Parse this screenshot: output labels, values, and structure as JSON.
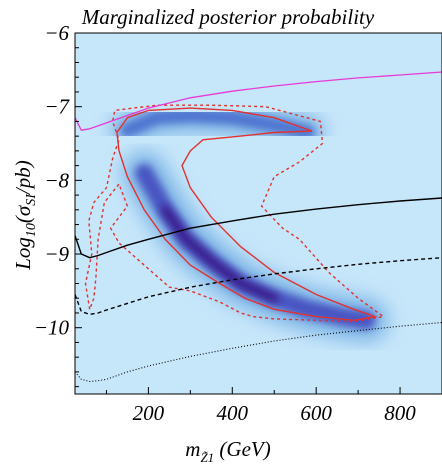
{
  "chart_data": {
    "type": "heatmap",
    "title": "Marginalized posterior probability",
    "xlabel": "m_{Z̃1} (GeV)",
    "ylabel": "Log10(σSI/pb)",
    "xlim": [
      25,
      900
    ],
    "ylim": [
      -10.9,
      -6
    ],
    "x_ticks": [
      {
        "value": 200,
        "label": "200"
      },
      {
        "value": 400,
        "label": "400"
      },
      {
        "value": 600,
        "label": "600"
      },
      {
        "value": 800,
        "label": "800"
      }
    ],
    "y_ticks": [
      {
        "value": -6,
        "label": "−6"
      },
      {
        "value": -7,
        "label": "−7"
      },
      {
        "value": -8,
        "label": "−8"
      },
      {
        "value": -9,
        "label": "−9"
      },
      {
        "value": -10,
        "label": "−10"
      }
    ],
    "colors": {
      "background": "#c6e6fa",
      "density_high": "#3a1f8a",
      "solid_contour": "#e0322f",
      "dashed_contour": "#e0322f",
      "magenta_line": "#e83ad8",
      "black_lines": "#000000"
    },
    "density_ridge": [
      [
        150,
        -7.32
      ],
      [
        220,
        -7.15
      ],
      [
        300,
        -7.12
      ],
      [
        400,
        -7.15
      ],
      [
        500,
        -7.25
      ],
      [
        580,
        -7.35
      ]
    ],
    "density_band": [
      [
        190,
        -7.9
      ],
      [
        240,
        -8.4
      ],
      [
        290,
        -8.8
      ],
      [
        350,
        -9.1
      ],
      [
        420,
        -9.4
      ],
      [
        500,
        -9.6
      ],
      [
        580,
        -9.75
      ],
      [
        660,
        -9.85
      ],
      [
        720,
        -9.9
      ]
    ],
    "solid_contour": [
      [
        125,
        -7.35
      ],
      [
        150,
        -7.15
      ],
      [
        200,
        -7.05
      ],
      [
        300,
        -7.02
      ],
      [
        400,
        -7.05
      ],
      [
        500,
        -7.15
      ],
      [
        590,
        -7.33
      ],
      [
        500,
        -7.35
      ],
      [
        420,
        -7.4
      ],
      [
        330,
        -7.45
      ],
      [
        300,
        -7.6
      ],
      [
        280,
        -7.8
      ],
      [
        300,
        -8.1
      ],
      [
        350,
        -8.5
      ],
      [
        420,
        -8.9
      ],
      [
        500,
        -9.25
      ],
      [
        600,
        -9.55
      ],
      [
        690,
        -9.75
      ],
      [
        740,
        -9.85
      ],
      [
        690,
        -9.9
      ],
      [
        600,
        -9.85
      ],
      [
        500,
        -9.75
      ],
      [
        430,
        -9.6
      ],
      [
        370,
        -9.4
      ],
      [
        300,
        -9.15
      ],
      [
        240,
        -8.8
      ],
      [
        190,
        -8.4
      ],
      [
        150,
        -7.95
      ],
      [
        130,
        -7.6
      ]
    ],
    "dashed_contour": [
      [
        60,
        -9.75
      ],
      [
        50,
        -9.4
      ],
      [
        65,
        -9.0
      ],
      [
        58,
        -8.55
      ],
      [
        70,
        -8.3
      ],
      [
        100,
        -8.1
      ],
      [
        115,
        -7.7
      ],
      [
        130,
        -7.45
      ],
      [
        115,
        -7.2
      ],
      [
        120,
        -7.05
      ],
      [
        220,
        -6.98
      ],
      [
        350,
        -6.98
      ],
      [
        480,
        -7.0
      ],
      [
        610,
        -7.2
      ],
      [
        615,
        -7.5
      ],
      [
        560,
        -7.75
      ],
      [
        500,
        -7.95
      ],
      [
        470,
        -8.35
      ],
      [
        520,
        -8.65
      ],
      [
        560,
        -8.8
      ],
      [
        630,
        -9.25
      ],
      [
        700,
        -9.6
      ],
      [
        760,
        -9.85
      ],
      [
        690,
        -9.92
      ],
      [
        600,
        -9.9
      ],
      [
        500,
        -9.88
      ],
      [
        450,
        -9.85
      ],
      [
        420,
        -9.8
      ],
      [
        370,
        -9.65
      ],
      [
        300,
        -9.5
      ],
      [
        250,
        -9.45
      ],
      [
        200,
        -9.2
      ],
      [
        160,
        -9.0
      ],
      [
        130,
        -8.85
      ],
      [
        110,
        -8.65
      ],
      [
        150,
        -8.35
      ],
      [
        130,
        -8.05
      ],
      [
        95,
        -8.3
      ],
      [
        80,
        -8.8
      ],
      [
        75,
        -9.3
      ],
      [
        70,
        -9.6
      ]
    ],
    "series": [
      {
        "style": "magenta-solid",
        "x": [
          25,
          40,
          60,
          100,
          150,
          200,
          300,
          400,
          500,
          600,
          700,
          800,
          900
        ],
        "y": [
          -7.15,
          -7.32,
          -7.3,
          -7.22,
          -7.12,
          -7.02,
          -6.88,
          -6.79,
          -6.72,
          -6.66,
          -6.61,
          -6.57,
          -6.53
        ]
      },
      {
        "style": "black-solid",
        "x": [
          25,
          40,
          60,
          80,
          100,
          150,
          200,
          300,
          400,
          500,
          600,
          700,
          800,
          900
        ],
        "y": [
          -8.75,
          -9.0,
          -9.05,
          -9.02,
          -8.98,
          -8.88,
          -8.8,
          -8.65,
          -8.55,
          -8.46,
          -8.39,
          -8.33,
          -8.28,
          -8.24
        ]
      },
      {
        "style": "black-dashed",
        "x": [
          25,
          40,
          60,
          80,
          100,
          150,
          200,
          300,
          400,
          500,
          600,
          700,
          800,
          900
        ],
        "y": [
          -9.55,
          -9.78,
          -9.82,
          -9.8,
          -9.76,
          -9.67,
          -9.58,
          -9.45,
          -9.35,
          -9.27,
          -9.2,
          -9.14,
          -9.09,
          -9.05
        ]
      },
      {
        "style": "black-dotted",
        "x": [
          25,
          40,
          60,
          80,
          100,
          150,
          200,
          300,
          400,
          500,
          600,
          700,
          800,
          900
        ],
        "y": [
          -10.6,
          -10.7,
          -10.73,
          -10.72,
          -10.7,
          -10.6,
          -10.52,
          -10.39,
          -10.28,
          -10.18,
          -10.1,
          -10.04,
          -9.98,
          -9.93
        ]
      }
    ]
  }
}
